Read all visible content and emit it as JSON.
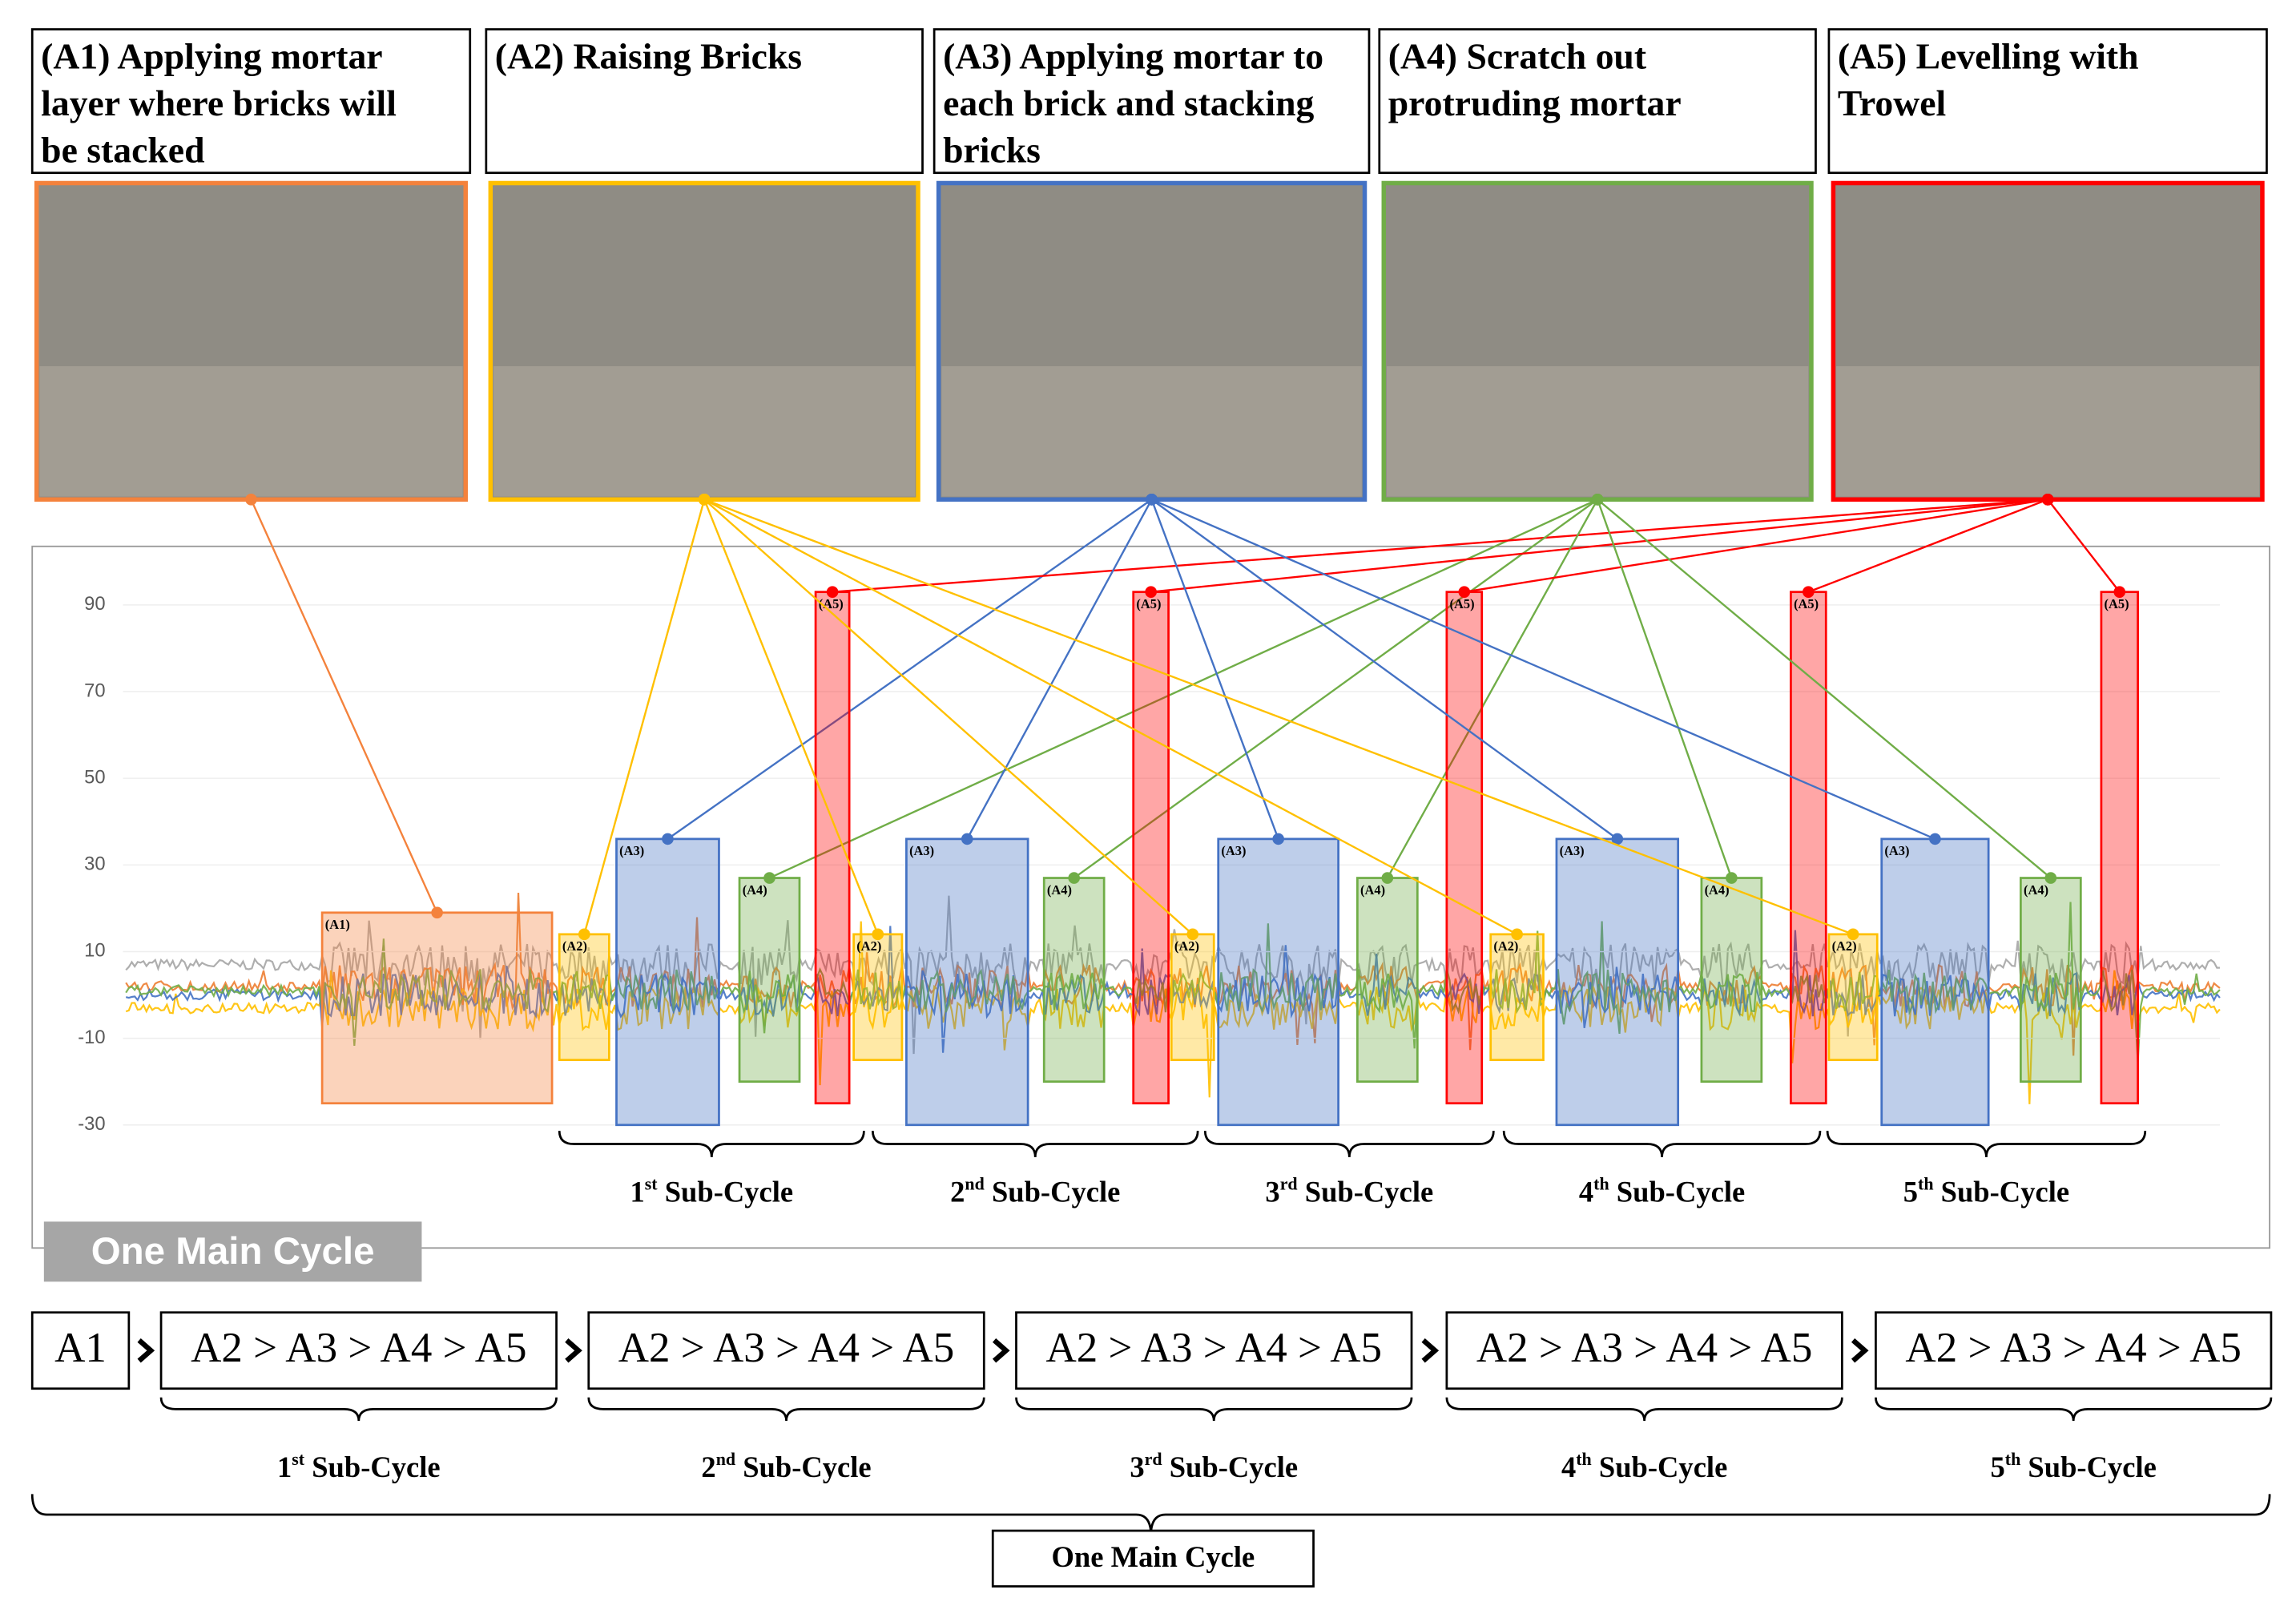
{
  "activities": [
    {
      "code": "(A1)",
      "title_lines": [
        "(A1) Applying mortar",
        "layer where bricks will",
        "be stacked"
      ],
      "color": "#f4823c"
    },
    {
      "code": "(A2)",
      "title_lines": [
        "(A2) Raising Bricks"
      ],
      "color": "#ffc000"
    },
    {
      "code": "(A3)",
      "title_lines": [
        "(A3) Applying mortar to",
        "each brick and stacking",
        "bricks"
      ],
      "color": "#4472c4"
    },
    {
      "code": "(A4)",
      "title_lines": [
        "(A4) Scratch out",
        "protruding mortar"
      ],
      "color": "#70ad47"
    },
    {
      "code": "(A5)",
      "title_lines": [
        "(A5) Levelling with",
        "Trowel"
      ],
      "color": "#ff0000"
    }
  ],
  "chart_data": {
    "type": "activity-timeline",
    "ylim": [
      -30,
      90
    ],
    "yticks": [
      -30,
      -10,
      10,
      30,
      50,
      70,
      90
    ],
    "segments": [
      {
        "label": "(A1)",
        "top": 19,
        "bottom": -25
      },
      {
        "label": "(A2)",
        "top": 14,
        "bottom": -15
      },
      {
        "label": "(A3)",
        "top": 36,
        "bottom": -30
      },
      {
        "label": "(A4)",
        "top": 27,
        "bottom": -20
      },
      {
        "label": "(A5)",
        "top": 93,
        "bottom": -25
      },
      {
        "label": "(A2)",
        "top": 14,
        "bottom": -15
      },
      {
        "label": "(A3)",
        "top": 36,
        "bottom": -30
      },
      {
        "label": "(A4)",
        "top": 27,
        "bottom": -20
      },
      {
        "label": "(A5)",
        "top": 93,
        "bottom": -25
      },
      {
        "label": "(A2)",
        "top": 14,
        "bottom": -15
      },
      {
        "label": "(A3)",
        "top": 36,
        "bottom": -30
      },
      {
        "label": "(A4)",
        "top": 27,
        "bottom": -20
      },
      {
        "label": "(A5)",
        "top": 93,
        "bottom": -25
      },
      {
        "label": "(A2)",
        "top": 14,
        "bottom": -15
      },
      {
        "label": "(A3)",
        "top": 36,
        "bottom": -30
      },
      {
        "label": "(A4)",
        "top": 27,
        "bottom": -20
      },
      {
        "label": "(A5)",
        "top": 93,
        "bottom": -25
      },
      {
        "label": "(A2)",
        "top": 14,
        "bottom": -15
      },
      {
        "label": "(A3)",
        "top": 36,
        "bottom": -30
      },
      {
        "label": "(A4)",
        "top": 27,
        "bottom": -20
      },
      {
        "label": "(A5)",
        "top": 93,
        "bottom": -25
      }
    ],
    "sub_cycles": [
      {
        "ordinal": "1",
        "suffix": "st",
        "label": "Sub-Cycle"
      },
      {
        "ordinal": "2",
        "suffix": "nd",
        "label": "Sub-Cycle"
      },
      {
        "ordinal": "3",
        "suffix": "rd",
        "label": "Sub-Cycle"
      },
      {
        "ordinal": "4",
        "suffix": "th",
        "label": "Sub-Cycle"
      },
      {
        "ordinal": "5",
        "suffix": "th",
        "label": "Sub-Cycle"
      }
    ],
    "main_cycle_label": "One Main Cycle"
  },
  "sequence": {
    "steps": [
      "A1",
      "A2 > A3 > A4 > A5",
      "A2 > A3 > A4 > A5",
      "A2 > A3 > A4 > A5",
      "A2 > A3 > A4 > A5",
      "A2 > A3 > A4 > A5"
    ],
    "sub_cycles": [
      {
        "ordinal": "1",
        "suffix": "st",
        "label": "Sub-Cycle"
      },
      {
        "ordinal": "2",
        "suffix": "nd",
        "label": "Sub-Cycle"
      },
      {
        "ordinal": "3",
        "suffix": "rd",
        "label": "Sub-Cycle"
      },
      {
        "ordinal": "4",
        "suffix": "th",
        "label": "Sub-Cycle"
      },
      {
        "ordinal": "5",
        "suffix": "th",
        "label": "Sub-Cycle"
      }
    ],
    "main_cycle": "One Main Cycle"
  }
}
